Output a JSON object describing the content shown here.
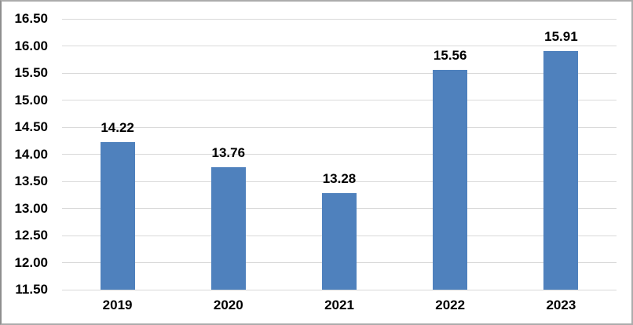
{
  "chart_data": {
    "type": "bar",
    "title": "",
    "xlabel": "",
    "ylabel": "",
    "categories": [
      "2019",
      "2020",
      "2021",
      "2022",
      "2023"
    ],
    "values": [
      14.22,
      13.76,
      13.28,
      15.56,
      15.91
    ],
    "data_labels": [
      "14.22",
      "13.76",
      "13.28",
      "15.56",
      "15.91"
    ],
    "y_tick_labels": [
      "16.50",
      "16.00",
      "15.50",
      "15.00",
      "14.50",
      "14.00",
      "13.50",
      "13.00",
      "12.50",
      "12.00",
      "11.50"
    ],
    "ylim": [
      11.5,
      16.5
    ],
    "y_step": 0.5,
    "grid": true,
    "legend": false,
    "colors": {
      "bar": "#4F81BD",
      "gridline": "#D9D9D9",
      "text": "#000000",
      "background": "#FFFFFF"
    }
  }
}
